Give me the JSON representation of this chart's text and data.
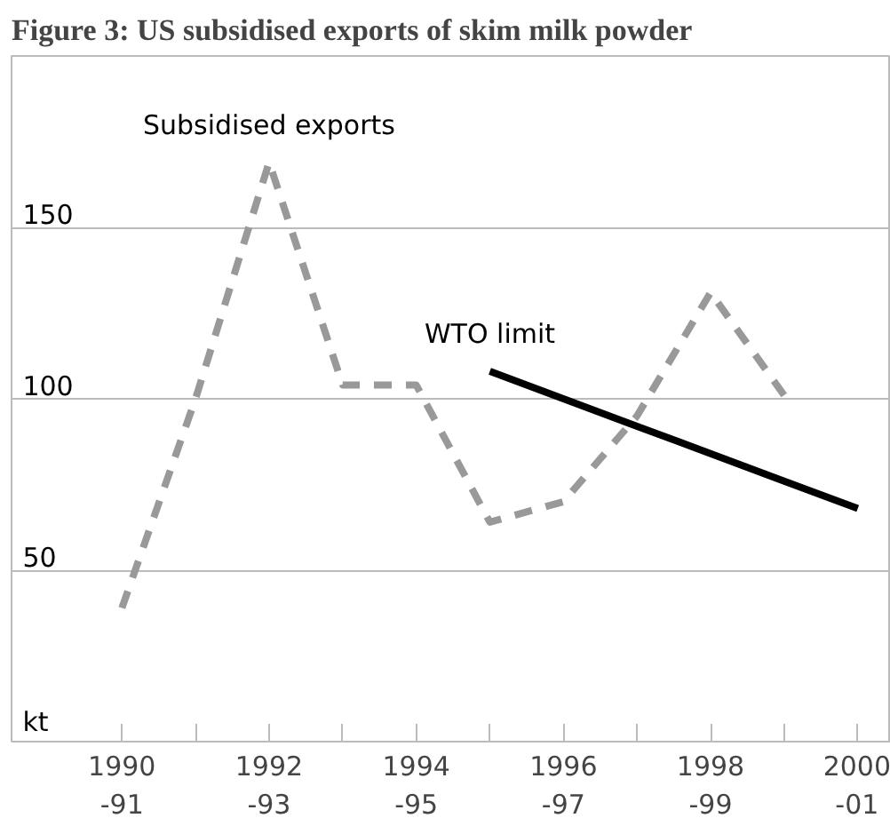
{
  "chart_data": {
    "type": "line",
    "title": "Figure 3: US subsidised exports of skim milk powder",
    "categories": [
      "1990\n-91",
      null,
      "1992\n-93",
      null,
      "1994\n-95",
      null,
      "1996\n-97",
      null,
      "1998\n-99",
      null,
      "2000\n-01"
    ],
    "ylim": [
      0,
      200
    ],
    "yticks": [
      {
        "value": 0,
        "label": "kt"
      },
      50,
      100,
      150
    ],
    "grid": "y",
    "marker": "none",
    "series": [
      {
        "name": "Subsidised exports",
        "color": "#999999",
        "line_style": "dashed",
        "values": [
          39,
          100,
          169,
          104,
          104,
          64,
          70,
          95,
          131,
          101,
          null
        ]
      },
      {
        "name": "WTO limit",
        "color": "#000000",
        "line_style": "solid",
        "values": [
          null,
          null,
          null,
          null,
          null,
          108,
          100,
          92,
          84,
          76,
          68
        ]
      }
    ]
  }
}
